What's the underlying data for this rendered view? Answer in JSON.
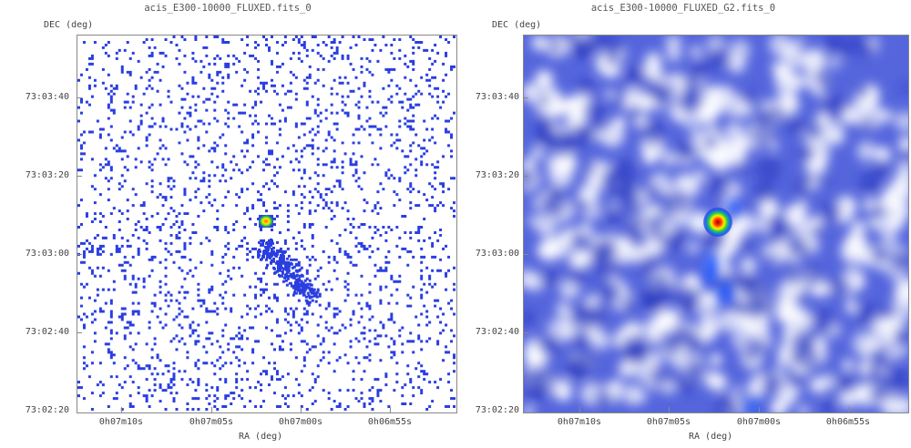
{
  "left_panel": {
    "title": "acis_E300-10000_FLUXED.fits_0",
    "y_axis_label": "DEC (deg)",
    "x_axis_label": "RA (deg)",
    "y_ticks": [
      "73:03:40",
      "73:03:20",
      "73:03:00",
      "73:02:40",
      "73:02:20"
    ],
    "x_ticks": [
      "0h07m10s",
      "0h07m05s",
      "0h07m00s",
      "0h06m55s"
    ]
  },
  "right_panel": {
    "title": "acis_E300-10000_FLUXED_G2.fits_0",
    "y_axis_label": "DEC (deg)",
    "x_axis_label": "RA (deg)",
    "y_ticks": [
      "73:03:40",
      "73:03:20",
      "73:03:00",
      "73:02:40",
      "73:02:20"
    ],
    "x_ticks": [
      "0h07m10s",
      "0h07m05s",
      "0h07m00s",
      "0h06m55s"
    ]
  },
  "colors": {
    "background": "#ffffff",
    "event_pixel": "#2a3ee0",
    "smoothed_base": "#5566dd",
    "source_core": "#aa0000"
  }
}
